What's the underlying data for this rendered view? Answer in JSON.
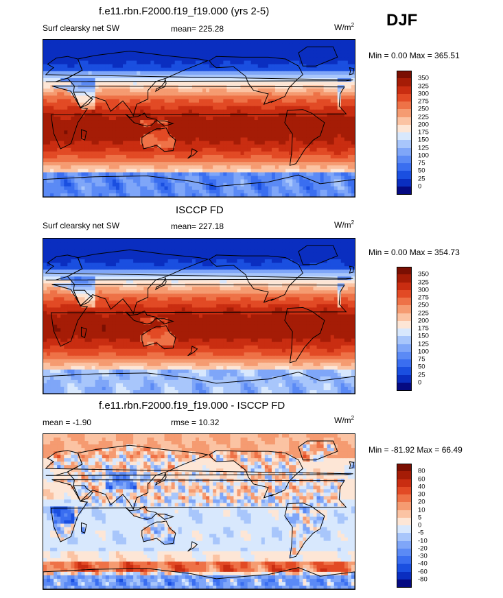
{
  "season": "DJF",
  "panels": [
    {
      "title": "f.e11.rbn.F2000.f19_f19.000 (yrs 2-5)",
      "variable": "Surf clearsky net SW",
      "mean": "mean= 225.28",
      "units_base": "W/m",
      "units_exp": "2",
      "minmax": "Min =   0.00 Max = 365.51",
      "kind": "sw_model"
    },
    {
      "title": "ISCCP FD",
      "variable": "Surf clearsky net SW",
      "mean": "mean= 227.18",
      "units_base": "W/m",
      "units_exp": "2",
      "minmax": "Min =   0.00 Max = 354.73",
      "kind": "sw_obs"
    },
    {
      "title": "f.e11.rbn.F2000.f19_f19.000 - ISCCP FD",
      "variable": "mean =  -1.90",
      "mean": "rmse =  10.32",
      "units_base": "W/m",
      "units_exp": "2",
      "minmax": "Min = -81.92 Max =  66.49",
      "kind": "diff"
    }
  ],
  "chart_data": [
    {
      "type": "heatmap",
      "title": "f.e11.rbn.F2000.f19_f19.000 (yrs 2-5)",
      "subtitle": "Surf clearsky net SW",
      "mean": 225.28,
      "min": 0.0,
      "max": 365.51,
      "units": "W/m2",
      "colorbar_levels": [
        0,
        25,
        50,
        75,
        100,
        125,
        150,
        175,
        200,
        225,
        250,
        275,
        300,
        325,
        350
      ],
      "colors": [
        "#050a82",
        "#0a2ec0",
        "#1a4fe0",
        "#3a6ef0",
        "#5b8af5",
        "#7fa6f8",
        "#a8c6fb",
        "#d8e8fd",
        "#fde6d6",
        "#fbc3a3",
        "#f59b71",
        "#ee7247",
        "#e24a25",
        "#c92d11",
        "#a51c06",
        "#7a0f02"
      ]
    },
    {
      "type": "heatmap",
      "title": "ISCCP FD",
      "subtitle": "Surf clearsky net SW",
      "mean": 227.18,
      "min": 0.0,
      "max": 354.73,
      "units": "W/m2",
      "colorbar_levels": [
        0,
        25,
        50,
        75,
        100,
        125,
        150,
        175,
        200,
        225,
        250,
        275,
        300,
        325,
        350
      ],
      "colors": [
        "#050a82",
        "#0a2ec0",
        "#1a4fe0",
        "#3a6ef0",
        "#5b8af5",
        "#7fa6f8",
        "#a8c6fb",
        "#d8e8fd",
        "#fde6d6",
        "#fbc3a3",
        "#f59b71",
        "#ee7247",
        "#e24a25",
        "#c92d11",
        "#a51c06",
        "#7a0f02"
      ]
    },
    {
      "type": "heatmap",
      "title": "f.e11.rbn.F2000.f19_f19.000 - ISCCP FD",
      "mean": -1.9,
      "rmse": 10.32,
      "min": -81.92,
      "max": 66.49,
      "units": "W/m2",
      "colorbar_levels": [
        -80,
        -60,
        -40,
        -30,
        -20,
        -10,
        -5,
        0,
        5,
        10,
        20,
        30,
        40,
        60,
        80
      ],
      "colors": [
        "#050a82",
        "#0a2ec0",
        "#1a4fe0",
        "#3a6ef0",
        "#5b8af5",
        "#7fa6f8",
        "#a8c6fb",
        "#d8e8fd",
        "#fde6d6",
        "#fbc3a3",
        "#f59b71",
        "#ee7247",
        "#e24a25",
        "#c92d11",
        "#a51c06",
        "#7a0f02"
      ]
    }
  ]
}
